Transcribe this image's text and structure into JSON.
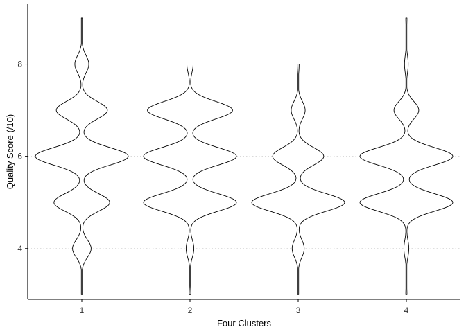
{
  "chart_data": {
    "type": "violin",
    "xlabel": "Four Clusters",
    "ylabel": "Quality Score (/10)",
    "categories": [
      "1",
      "2",
      "3",
      "4"
    ],
    "ylim": [
      2.9,
      9.3
    ],
    "yticks": [
      4,
      6,
      8
    ],
    "ytick_labels": [
      "4",
      "6",
      "8"
    ],
    "grid": "horizontal dotted at major y ticks",
    "legend": "none",
    "score_levels": [
      3,
      4,
      5,
      6,
      7,
      8,
      9
    ],
    "series": [
      {
        "category": "1",
        "y_min": 3,
        "y_max": 9,
        "relative_density": [
          0.01,
          0.2,
          0.6,
          1.0,
          0.55,
          0.15,
          0.01
        ]
      },
      {
        "category": "2",
        "y_min": 3,
        "y_max": 8,
        "relative_density": [
          0.01,
          0.05,
          0.6,
          0.6,
          0.55,
          0.04,
          0.0
        ]
      },
      {
        "category": "3",
        "y_min": 3,
        "y_max": 8,
        "relative_density": [
          0.01,
          0.13,
          1.0,
          0.55,
          0.15,
          0.02,
          0.0
        ]
      },
      {
        "category": "4",
        "y_min": 3,
        "y_max": 9,
        "relative_density": [
          0.01,
          0.04,
          0.75,
          0.75,
          0.2,
          0.03,
          0.01
        ]
      }
    ],
    "colors": {
      "outline": "#000000",
      "axis": "#000000",
      "grid": "#d4d4d4",
      "background": "#ffffff"
    }
  }
}
